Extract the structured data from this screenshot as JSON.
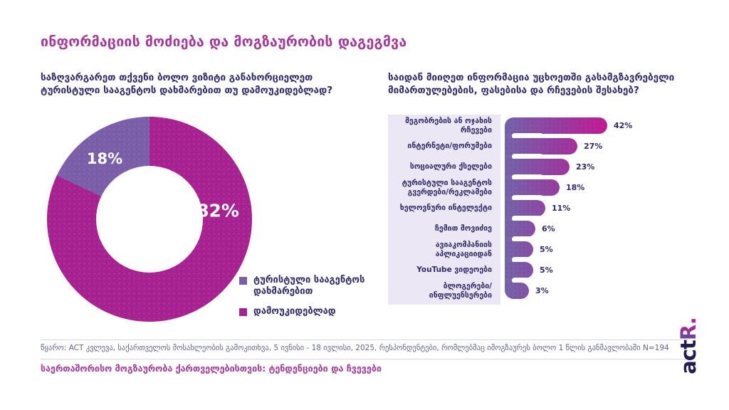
{
  "header": {
    "title": "ინფორმაციის მოძიება და მოგზაურობის დაგეგმვა"
  },
  "colors": {
    "title_magenta": "#A43A99",
    "text_indigo": "#2F2A6B",
    "donut_magenta": "#A72191",
    "donut_purple": "#7A5EA8",
    "bar_gradient_start": "#7465AA",
    "bar_gradient_end": "#C51A92",
    "panel_lavender": "#ECE7F5",
    "logo_navy": "#241D4F"
  },
  "chart_data": [
    {
      "type": "pie",
      "subtype": "donut",
      "question": "საზღვარგარეთ თქვენი ბოლო ვიზიტი განახორციელეთ ტურისტული სააგენტოს დახმარებით თუ დამოუკიდებლად?",
      "slices": [
        {
          "label": "დამოუკიდებლად",
          "value": 82,
          "color": "#A72191"
        },
        {
          "label": "ტურისტული სააგენტოს დახმარებით",
          "value": 18,
          "color": "#7A5EA8"
        }
      ],
      "value_suffix": "%",
      "legend_position": "bottom-right",
      "legend": [
        {
          "text": "ტურისტული სააგენტოს დახმარებით",
          "color": "#7A5EA8"
        },
        {
          "text": "დამოუკიდებლად",
          "color": "#A72191"
        }
      ]
    },
    {
      "type": "bar",
      "orientation": "horizontal",
      "question": "საიდან მიიღეთ ინფორმაცია უცხოეთში გასამგზავრებელი მიმართულებების, ფასებისა და რჩევების შესახებ?",
      "categories": [
        "მეგობრების ან ოჯახის რჩევები",
        "ინტერნეტი/ფორუმები",
        "სოციალური ქსელები",
        "ტურისტული სააგენტოს გვერდები/რეკლამები",
        "ხელოვნური ინტელექტი",
        "ჩემით მოვიძიე",
        "ავიაკომპანიის აპლიკაციიდან",
        "YouTube ვიდეოები",
        "ბლოგერები/ინფლუენსერები"
      ],
      "values": [
        42,
        27,
        23,
        18,
        11,
        6,
        5,
        5,
        3
      ],
      "value_suffix": "%",
      "xlim": [
        0,
        42
      ],
      "grid": false
    }
  ],
  "footer": {
    "source": "წყარო: ACT კვლევა, საქართველოს მოსახლეობის გამოკითხვა, 5 ივნისი - 18 ივლისი, 2025, რესპონდენტები, რომლებმაც იმოგზაურეს ბოლო 1 წლის განმავლობაში N=194",
    "title": "საერთაშორისო მოგზაურობა ქართველებისთვის: ტენდენციები და ჩვევები"
  },
  "logo": {
    "part_act": "act",
    "part_r": "R",
    "part_dot": "."
  }
}
